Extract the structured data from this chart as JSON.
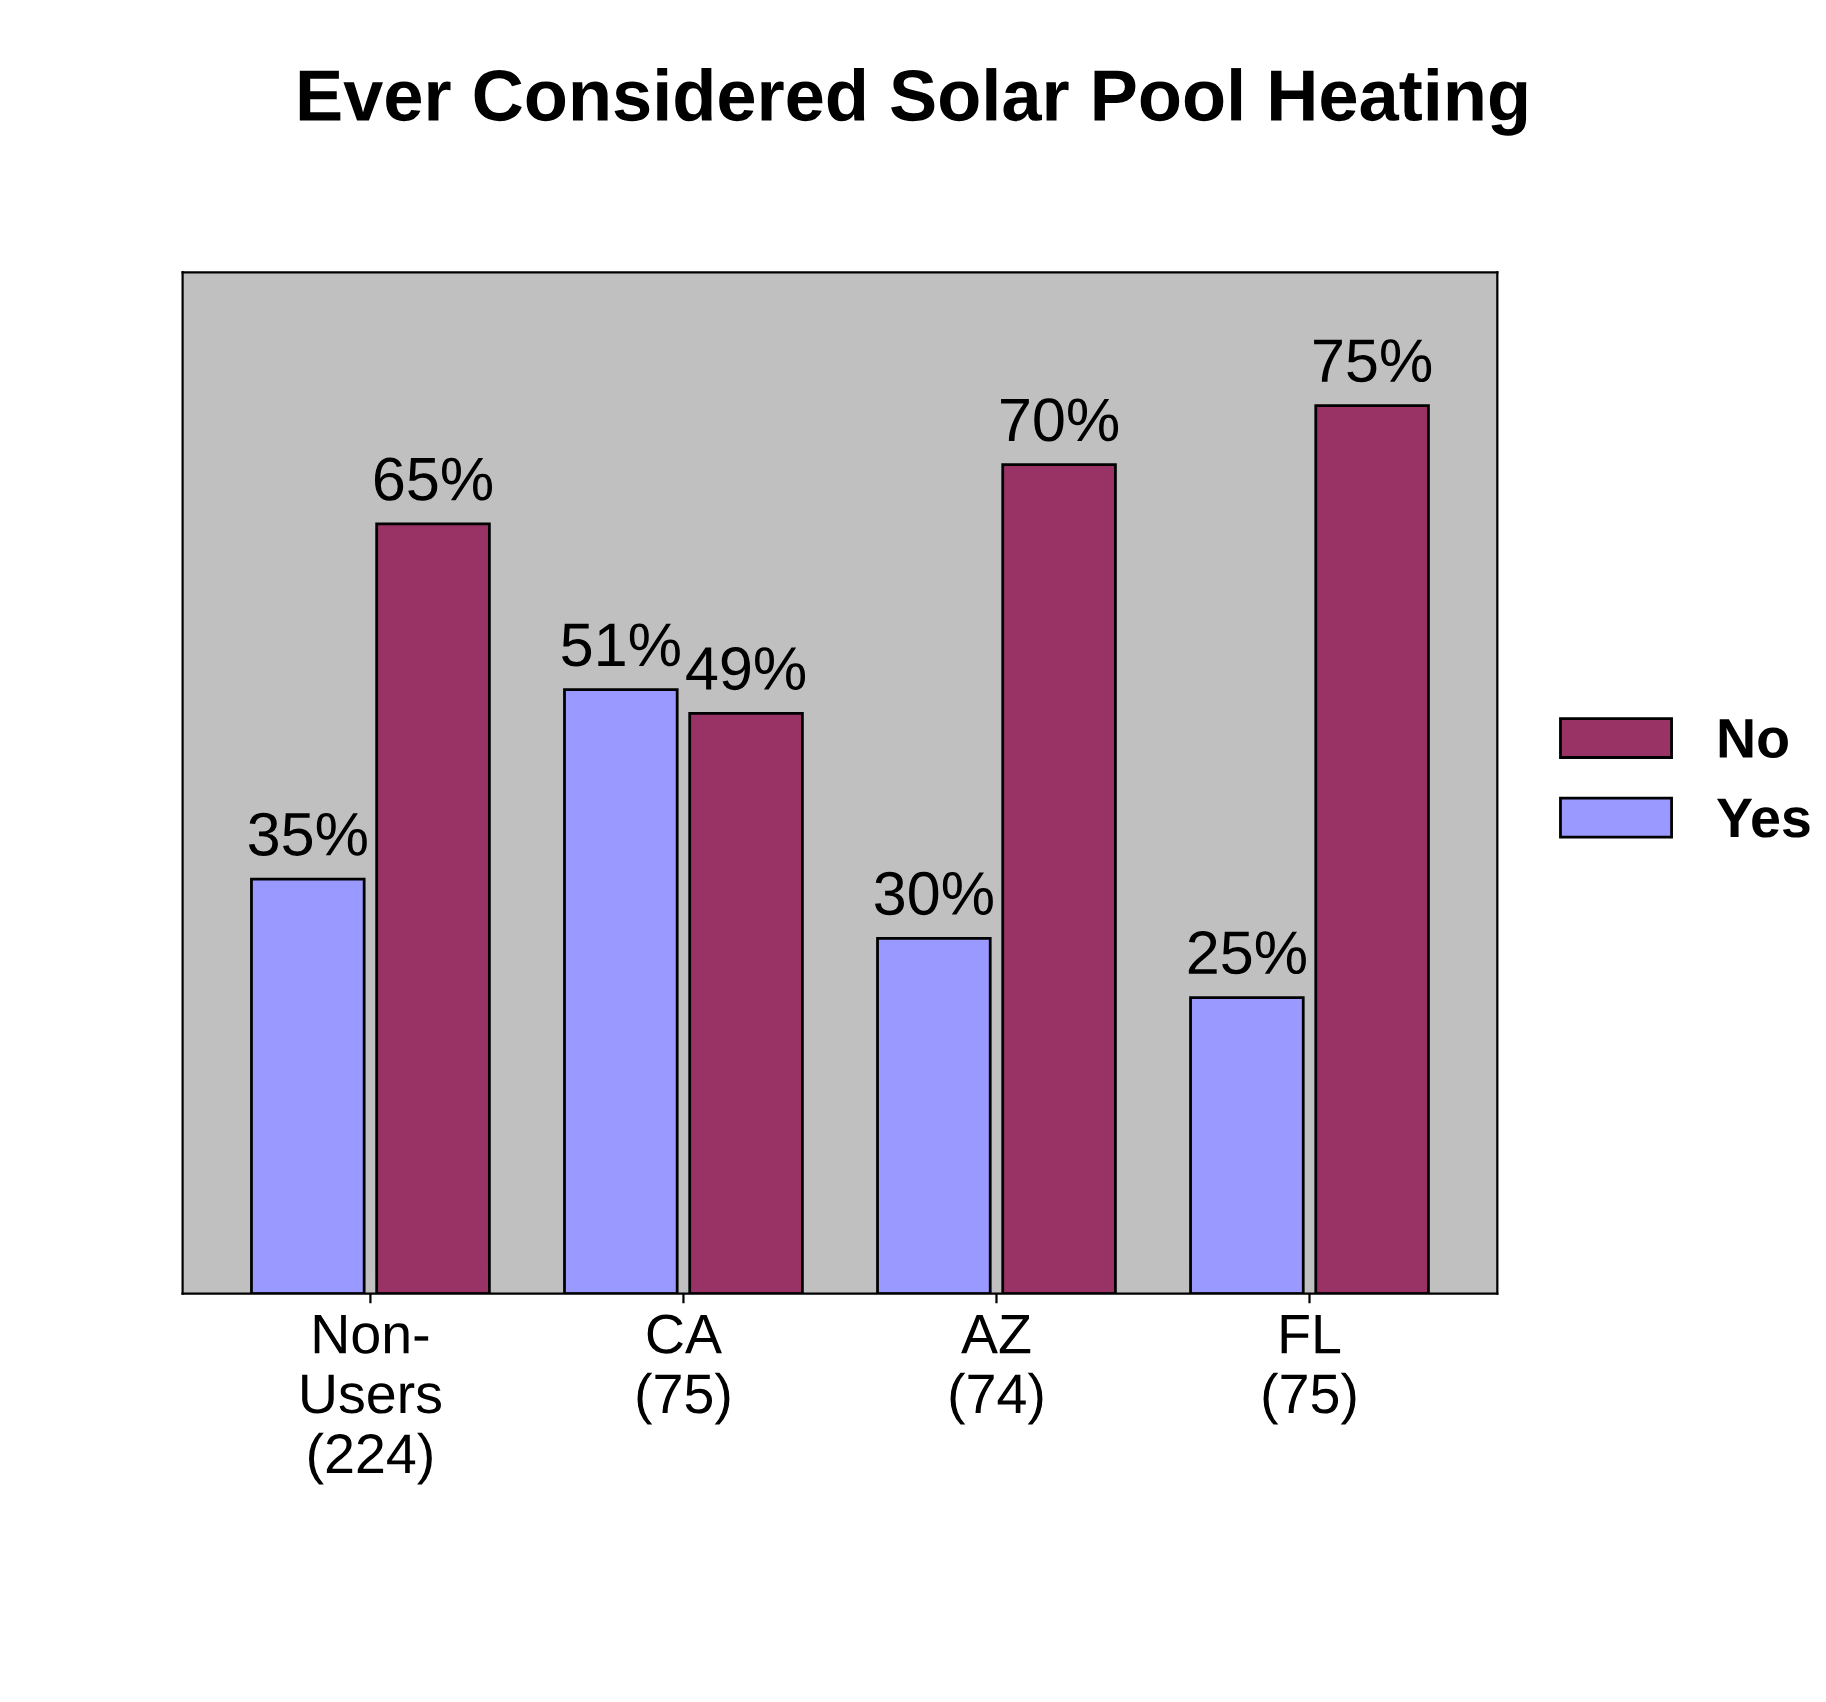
{
  "chart_data": {
    "type": "bar",
    "title": "Ever Considered Solar Pool Heating",
    "categories": [
      "Non-\nUsers\n(224)",
      "CA\n(75)",
      "AZ\n(74)",
      "FL\n(75)"
    ],
    "series": [
      {
        "name": "Yes",
        "color": "#9999ff",
        "values": [
          35,
          51,
          30,
          25
        ],
        "value_labels": [
          "35%",
          "51%",
          "30%",
          "25%"
        ]
      },
      {
        "name": "No",
        "color": "#993366",
        "values": [
          65,
          49,
          70,
          75
        ],
        "value_labels": [
          "65%",
          "49%",
          "70%",
          "75%"
        ]
      }
    ],
    "legend": "right",
    "grid": false
  }
}
